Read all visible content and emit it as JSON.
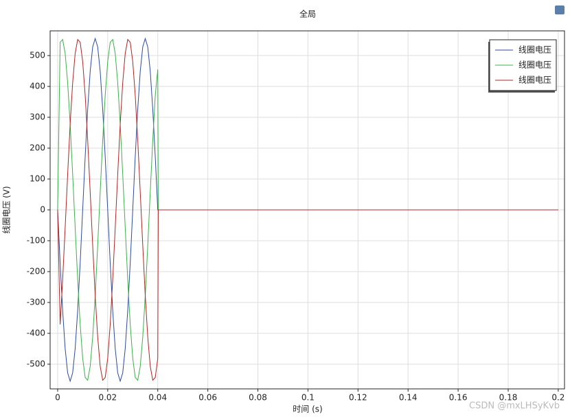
{
  "chart_data": {
    "type": "line",
    "title": "全局",
    "x_label": "时间 (s)",
    "y_label": "线圈电压 (V)",
    "x": [
      0,
      0.001,
      0.002,
      0.003,
      0.004,
      0.005,
      0.006,
      0.007,
      0.008,
      0.009,
      0.01,
      0.011,
      0.012,
      0.013,
      0.014,
      0.015,
      0.016,
      0.017,
      0.018,
      0.019,
      0.02,
      0.021,
      0.022,
      0.023,
      0.024,
      0.025,
      0.026,
      0.027,
      0.028,
      0.029,
      0.03,
      0.031,
      0.032,
      0.033,
      0.034,
      0.035,
      0.036,
      0.037,
      0.038,
      0.039,
      0.04,
      0.0402,
      0.2
    ],
    "series": [
      {
        "name": "线圈电压",
        "color": "#2b4a9e",
        "values": [
          0,
          -172,
          -326,
          -449,
          -528,
          -555,
          -528,
          -449,
          -326,
          -172,
          0,
          172,
          326,
          449,
          528,
          555,
          528,
          449,
          326,
          172,
          0,
          -172,
          -326,
          -449,
          -528,
          -555,
          -528,
          -449,
          -326,
          -172,
          0,
          172,
          326,
          449,
          528,
          555,
          528,
          449,
          326,
          172,
          0,
          0,
          0
        ]
      },
      {
        "name": "线圈电压",
        "color": "#3cb04a",
        "values": [
          0,
          543,
          552,
          507,
          412,
          278,
          115,
          -58,
          -226,
          -371,
          -481,
          -543,
          -552,
          -507,
          -412,
          -278,
          -115,
          58,
          226,
          371,
          481,
          543,
          552,
          507,
          412,
          278,
          115,
          -58,
          -226,
          -371,
          -481,
          -543,
          -552,
          -507,
          -412,
          -278,
          -115,
          58,
          226,
          371,
          455,
          0,
          0
        ]
      },
      {
        "name": "线圈电压",
        "color": "#b02424",
        "values": [
          0,
          -371,
          -226,
          -58,
          115,
          278,
          412,
          507,
          552,
          543,
          481,
          371,
          226,
          58,
          -115,
          -278,
          -412,
          -507,
          -552,
          -543,
          -481,
          -371,
          -226,
          -58,
          115,
          278,
          412,
          507,
          552,
          543,
          481,
          371,
          226,
          58,
          -115,
          -278,
          -412,
          -507,
          -552,
          -543,
          -481,
          0,
          0
        ]
      }
    ],
    "xlim": [
      -0.003,
      0.2025
    ],
    "ylim": [
      -580,
      580
    ],
    "xticks": [
      0,
      0.02,
      0.04,
      0.06,
      0.08,
      0.1,
      0.12,
      0.14,
      0.16,
      0.18,
      0.2
    ],
    "yticks": [
      -500,
      -400,
      -300,
      -200,
      -100,
      0,
      100,
      200,
      300,
      400,
      500
    ],
    "grid": true,
    "legend": "upper right",
    "watermark": "CSDN @mxLHSyKvb"
  }
}
